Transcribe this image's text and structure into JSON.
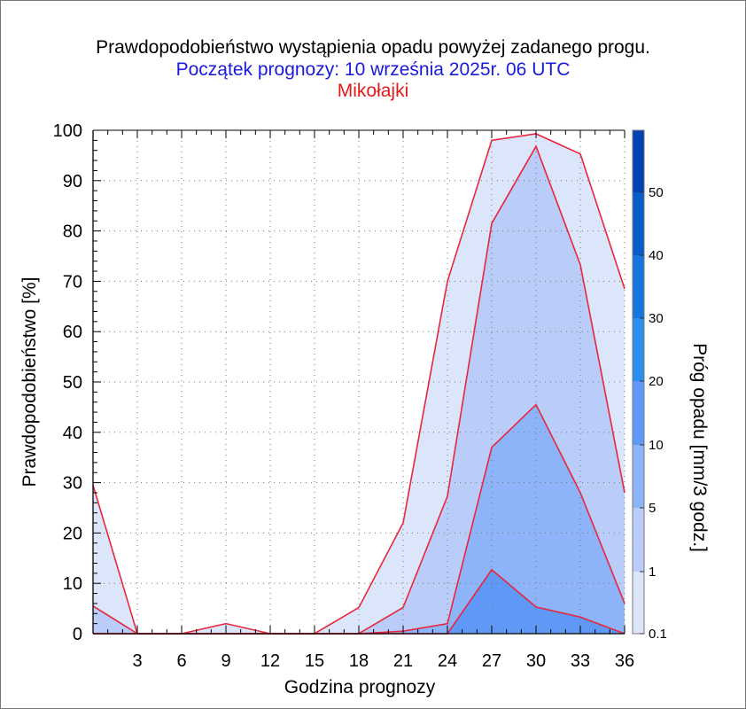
{
  "header": {
    "title": "Prawdopodobieństwo wystąpienia opadu powyżej zadanego progu.",
    "subtitle": "Początek prognozy: 10 września 2025r. 06 UTC",
    "location": "Mikołajki"
  },
  "chart_data": {
    "type": "area",
    "xlabel": "Godzina prognozy",
    "ylabel": "Prawdopodobieństwo [%]",
    "colorbar_label": "Próg opadu [mm/3 godz.]",
    "x": [
      0,
      3,
      6,
      9,
      12,
      15,
      18,
      21,
      24,
      27,
      30,
      33,
      36
    ],
    "x_tick_labels": [
      "3",
      "6",
      "9",
      "12",
      "15",
      "18",
      "21",
      "24",
      "27",
      "30",
      "33",
      "36"
    ],
    "x_ticks": [
      3,
      6,
      9,
      12,
      15,
      18,
      21,
      24,
      27,
      30,
      33,
      36
    ],
    "xlim": [
      0,
      36
    ],
    "ylim": [
      0,
      100
    ],
    "y_ticks": [
      0,
      10,
      20,
      30,
      40,
      50,
      60,
      70,
      80,
      90,
      100
    ],
    "grid": true,
    "series": [
      {
        "threshold": 0.1,
        "values": [
          29.5,
          0,
          0,
          2,
          0,
          0,
          5.2,
          22,
          70,
          98,
          99.3,
          95.3,
          68.5
        ],
        "color": "#dce6fb"
      },
      {
        "threshold": 1,
        "values": [
          5.5,
          0,
          0,
          0,
          0,
          0,
          0,
          5.2,
          27.3,
          81.5,
          96.8,
          73.3,
          28
        ],
        "color": "#b9cdf8"
      },
      {
        "threshold": 5,
        "values": [
          0,
          0,
          0,
          0,
          0,
          0,
          0,
          0.5,
          2,
          37,
          45.5,
          28,
          6
        ],
        "color": "#8db3f9"
      },
      {
        "threshold": 10,
        "values": [
          0,
          0,
          0,
          0,
          0,
          0,
          0,
          0,
          0,
          12.7,
          5.3,
          3.3,
          0
        ],
        "color": "#5f98f7"
      }
    ],
    "colorbar": {
      "levels": [
        0.1,
        1,
        5,
        10,
        20,
        30,
        40,
        50
      ],
      "labels": [
        "0.1",
        "1",
        "5",
        "10",
        "20",
        "30",
        "40",
        "50"
      ],
      "colors": [
        "#dce6fb",
        "#b9cdf8",
        "#8db3f9",
        "#5f98f7",
        "#2b8ff0",
        "#1576e0",
        "#0a5ccc",
        "#0042b0"
      ]
    },
    "line_color": "#e8263c"
  }
}
